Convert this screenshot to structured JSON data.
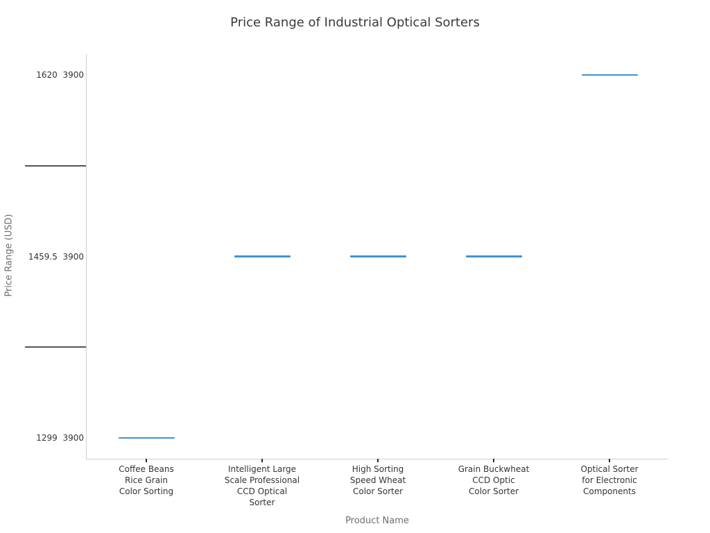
{
  "chart": {
    "title": "Price Range of Industrial Optical Sorters",
    "x_axis_title": "Product Name",
    "y_axis_title": "Price Range (USD)",
    "colors": {
      "segment": "#4292d2",
      "spine": "#cfcfcf",
      "tick_label": "#333333",
      "y_tick_line": "#555555",
      "axis_title": "#6e6e6e",
      "title": "#3a3a3a"
    }
  },
  "chart_data": {
    "type": "scatter",
    "marker": "horizontal-line-segment",
    "title": "Price Range of Industrial Optical Sorters",
    "xlabel": "Product Name",
    "ylabel": "Price Range (USD)",
    "legend": "none",
    "grid": "off",
    "x_categories": [
      "Coffee Beans Rice Grain Color Sorting",
      "Intelligent Large Scale Professional CCD Optical Sorter",
      "High Sorting Speed Wheat Color Sorter",
      "Grain Buckwheat CCD Optic Color Sorter",
      "Optical Sorter for Electronic Components"
    ],
    "x_tick_label_lines": [
      [
        "Coffee Beans",
        "Rice Grain",
        "Color Sorting"
      ],
      [
        "Intelligent Large",
        "Scale Professional",
        "CCD Optical",
        "Sorter"
      ],
      [
        "High Sorting",
        "Speed Wheat",
        "Color Sorter"
      ],
      [
        "Grain Buckwheat",
        "CCD Optic",
        "Color Sorter"
      ],
      [
        "Optical Sorter",
        "for Electronic",
        "Components"
      ]
    ],
    "y_tick_rows_top_to_bottom": [
      {
        "type": "label",
        "text": "1620  3900"
      },
      {
        "type": "line",
        "text": ""
      },
      {
        "type": "label",
        "text": "1459.5  3900"
      },
      {
        "type": "line",
        "text": ""
      },
      {
        "type": "label",
        "text": "1299  3900"
      }
    ],
    "points": [
      {
        "product": "Coffee Beans Rice Grain Color Sorting",
        "category_index": 0,
        "y_row_index": 4,
        "y_label": "1299  3900",
        "price_low": 1299,
        "price_high": 3900
      },
      {
        "product": "Intelligent Large Scale Professional CCD Optical Sorter",
        "category_index": 1,
        "y_row_index": 2,
        "y_label": "1459.5  3900",
        "price_low": 1459.5,
        "price_high": 3900
      },
      {
        "product": "High Sorting Speed Wheat Color Sorter",
        "category_index": 2,
        "y_row_index": 2,
        "y_label": "1459.5  3900",
        "price_low": 1459.5,
        "price_high": 3900
      },
      {
        "product": "Grain Buckwheat CCD Optic Color Sorter",
        "category_index": 3,
        "y_row_index": 2,
        "y_label": "1459.5  3900",
        "price_low": 1459.5,
        "price_high": 3900
      },
      {
        "product": "Optical Sorter for Electronic Components",
        "category_index": 4,
        "y_row_index": 0,
        "y_label": "1620  3900",
        "price_low": 1620,
        "price_high": 3900
      }
    ]
  }
}
